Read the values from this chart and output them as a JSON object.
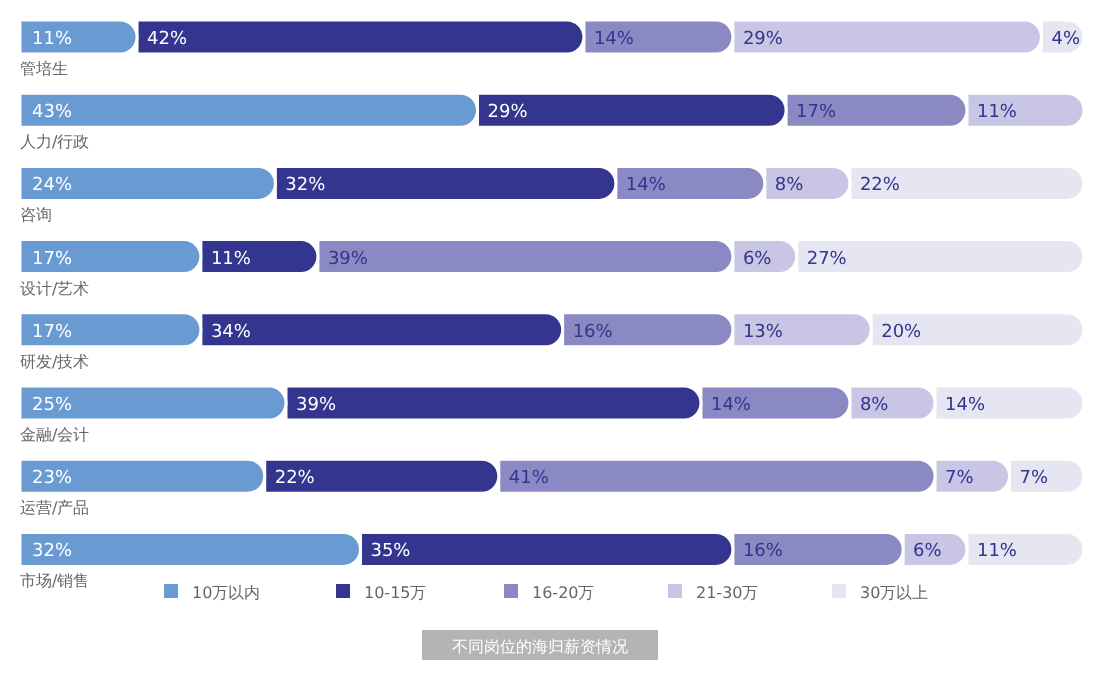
{
  "chart_data": {
    "type": "bar",
    "orientation": "horizontal",
    "stacked": true,
    "legend": "bottom",
    "categories": [
      "管培生",
      "人力/行政",
      "咨询",
      "设计/艺术",
      "研发/技术",
      "金融/会计",
      "运营/产品",
      "市场/销售"
    ],
    "series": [
      {
        "name": "10万以内",
        "color": "#6a9ad2",
        "values": [
          11,
          43,
          24,
          17,
          17,
          25,
          23,
          32
        ],
        "value_labels": [
          "11%",
          "43%",
          "24%",
          "17%",
          "17%",
          "25%",
          "23%",
          "32%"
        ]
      },
      {
        "name": "10-15万",
        "color": "#33358f",
        "values": [
          42,
          29,
          32,
          11,
          34,
          39,
          22,
          35
        ],
        "value_labels": [
          "42%",
          "29%",
          "32%",
          "11%",
          "34%",
          "39%",
          "22%",
          "35%"
        ]
      },
      {
        "name": "16-20万",
        "color": "#8b89c4",
        "values": [
          14,
          17,
          14,
          39,
          16,
          14,
          41,
          16
        ],
        "value_labels": [
          "14%",
          "17%",
          "14%",
          "39%",
          "16%",
          "14%",
          "41%",
          "16%"
        ]
      },
      {
        "name": "21-30万",
        "color": "#c8c6e4",
        "values": [
          29,
          11,
          8,
          6,
          13,
          8,
          7,
          6
        ],
        "value_labels": [
          "29%",
          "11%",
          "8%",
          "6%",
          "13%",
          "8%",
          "7%",
          "6%"
        ]
      },
      {
        "name": "30万以上",
        "color": "#e6e5f2",
        "values": [
          4,
          null,
          22,
          27,
          20,
          14,
          7,
          11
        ],
        "value_labels": [
          "4%",
          null,
          "22%",
          "27%",
          "20%",
          "14%",
          "7%",
          "11%"
        ]
      }
    ],
    "annotations": [
      "不同岗位的海归薪资情况"
    ]
  }
}
